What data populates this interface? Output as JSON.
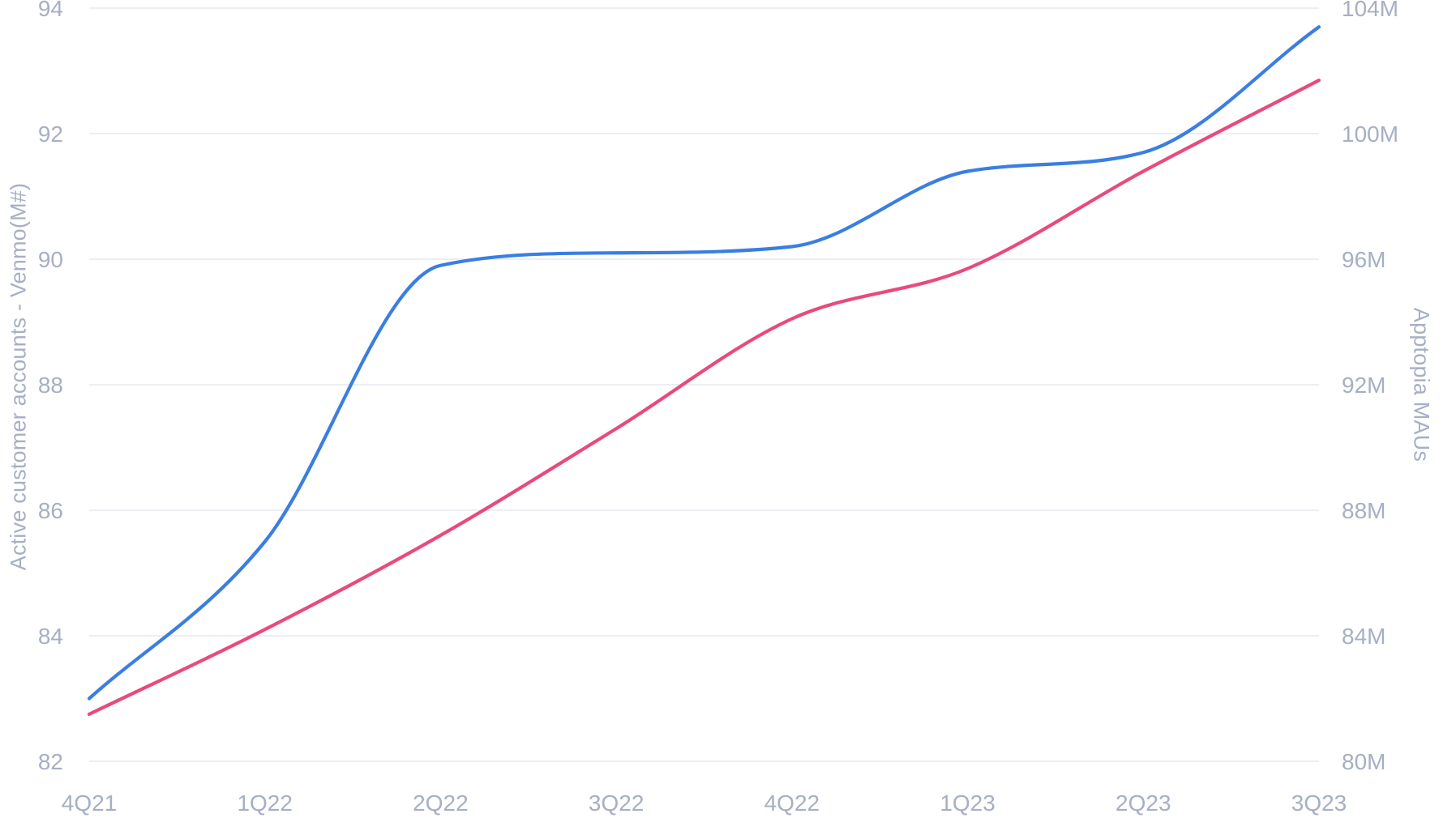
{
  "chart_data": {
    "type": "line",
    "title": "",
    "x": {
      "categories": [
        "4Q21",
        "1Q22",
        "2Q22",
        "3Q22",
        "4Q22",
        "1Q23",
        "2Q23",
        "3Q23"
      ]
    },
    "y_left": {
      "title": "Active customer accounts - Venmo(M#)",
      "range": [
        82,
        94
      ],
      "ticks": [
        82,
        84,
        86,
        88,
        90,
        92,
        94
      ],
      "tick_labels": [
        "82",
        "84",
        "86",
        "88",
        "90",
        "92",
        "94"
      ]
    },
    "y_right": {
      "title": "Apptopia MAUs",
      "range": [
        80,
        104
      ],
      "ticks": [
        80,
        84,
        88,
        92,
        96,
        100,
        104
      ],
      "tick_labels": [
        "80M",
        "84M",
        "88M",
        "92M",
        "96M",
        "100M",
        "104M"
      ]
    },
    "series": [
      {
        "name": "Active customer accounts - Venmo(M#)",
        "axis": "left",
        "color": "#3a7ee2",
        "values": [
          83.0,
          85.5,
          89.9,
          90.1,
          90.2,
          91.4,
          91.7,
          93.7
        ]
      },
      {
        "name": "Apptopia MAUs",
        "axis": "right",
        "color": "#e94a7c",
        "values": [
          81.5,
          84.2,
          87.2,
          90.6,
          94.1,
          95.7,
          98.8,
          101.7
        ]
      }
    ],
    "grid": "horizontal",
    "legend": "none",
    "smoothing": "monotone-cubic"
  },
  "colors": {
    "background": "#ffffff",
    "axis_text": "#a6afc4",
    "gridline": "#e6e9f1"
  }
}
